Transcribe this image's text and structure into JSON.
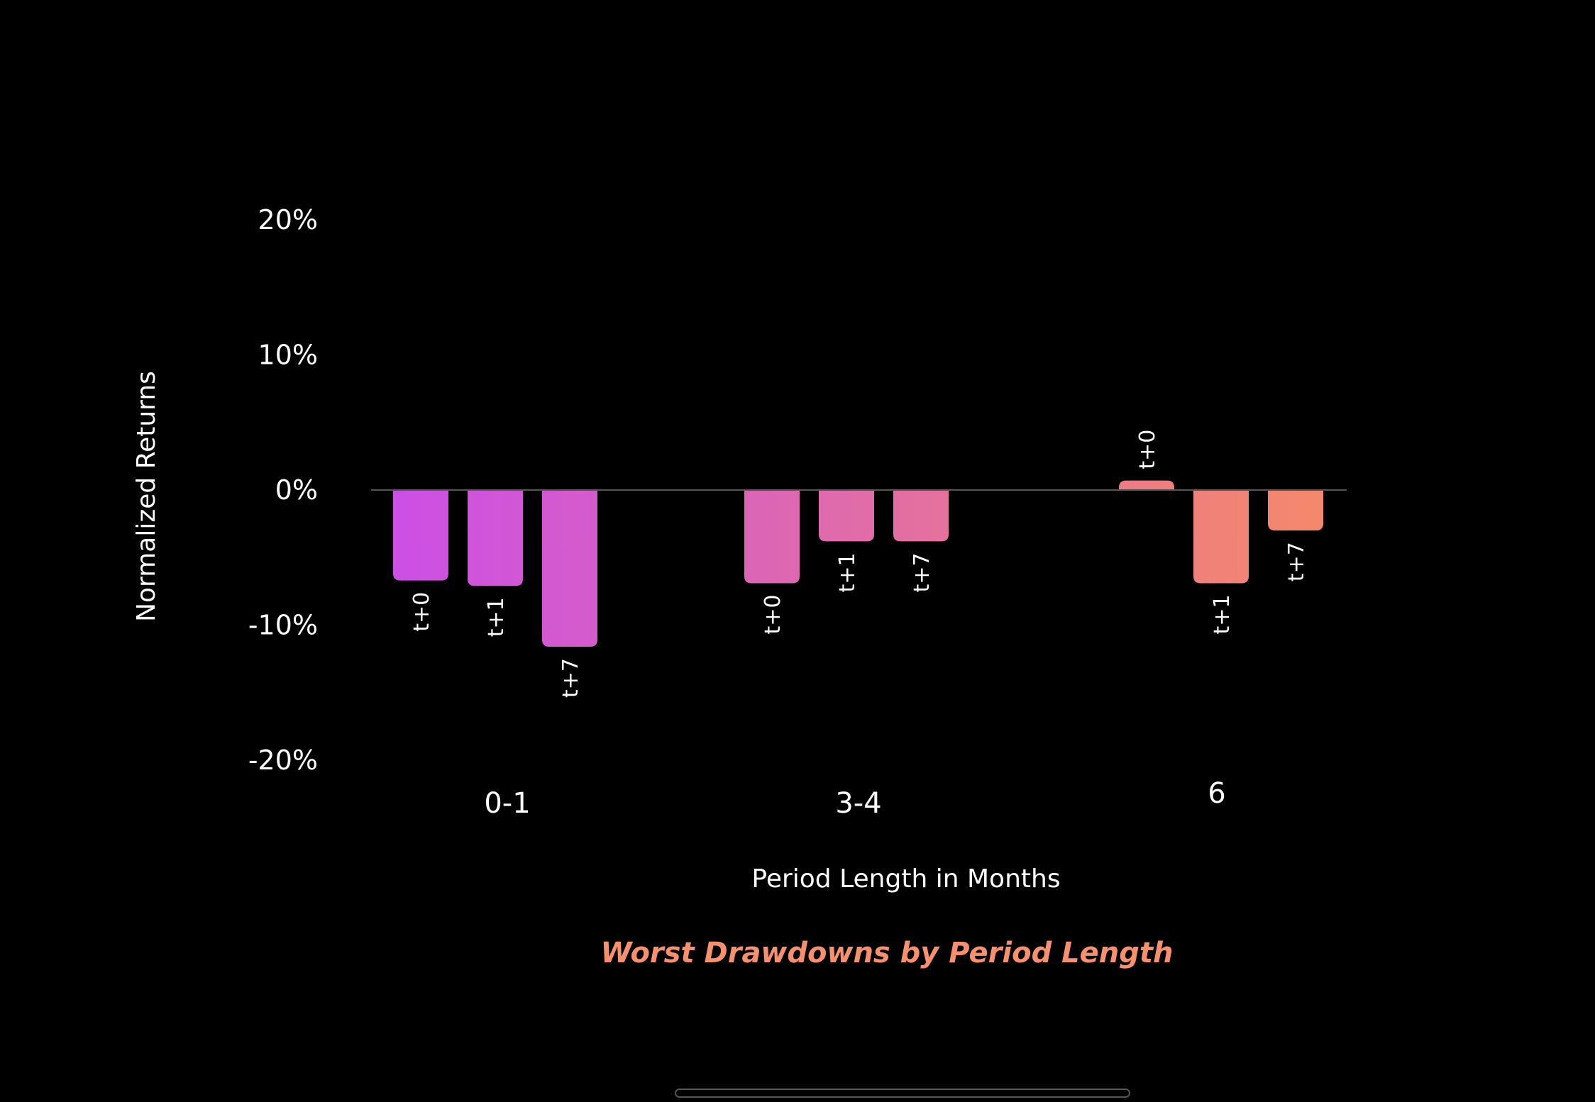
{
  "chart_data": {
    "type": "bar",
    "title": "Worst Drawdowns by Period Length",
    "xlabel": "Period Length in Months",
    "ylabel": "Normalized Returns",
    "ylim": [
      -20,
      20
    ],
    "yticks": [
      20,
      10,
      0,
      -10,
      -20
    ],
    "ytick_labels": [
      "20%",
      "10%",
      "0%",
      "-10%",
      "-20%"
    ],
    "grid": false,
    "legend": "none",
    "categories": [
      "0-1",
      "3-4",
      "6"
    ],
    "series_labels": [
      "t+0",
      "t+1",
      "t+7"
    ],
    "groups": [
      {
        "category": "0-1",
        "bars": [
          {
            "label": "t+0",
            "value": -6.7
          },
          {
            "label": "t+1",
            "value": -7.1
          },
          {
            "label": "t+7",
            "value": -11.6
          }
        ]
      },
      {
        "category": "3-4",
        "bars": [
          {
            "label": "t+0",
            "value": -6.9
          },
          {
            "label": "t+1",
            "value": -3.8
          },
          {
            "label": "t+7",
            "value": -3.8
          }
        ]
      },
      {
        "category": "6",
        "bars": [
          {
            "label": "t+0",
            "value": 0.7
          },
          {
            "label": "t+1",
            "value": -6.9
          },
          {
            "label": "t+7",
            "value": -3.0
          }
        ]
      }
    ],
    "colors": {
      "gradient_start": "#cc4fe6",
      "gradient_end": "#f5896a",
      "title_color": "#f7906d",
      "text_color": "#ffffff",
      "zero_line": "#555555"
    }
  }
}
